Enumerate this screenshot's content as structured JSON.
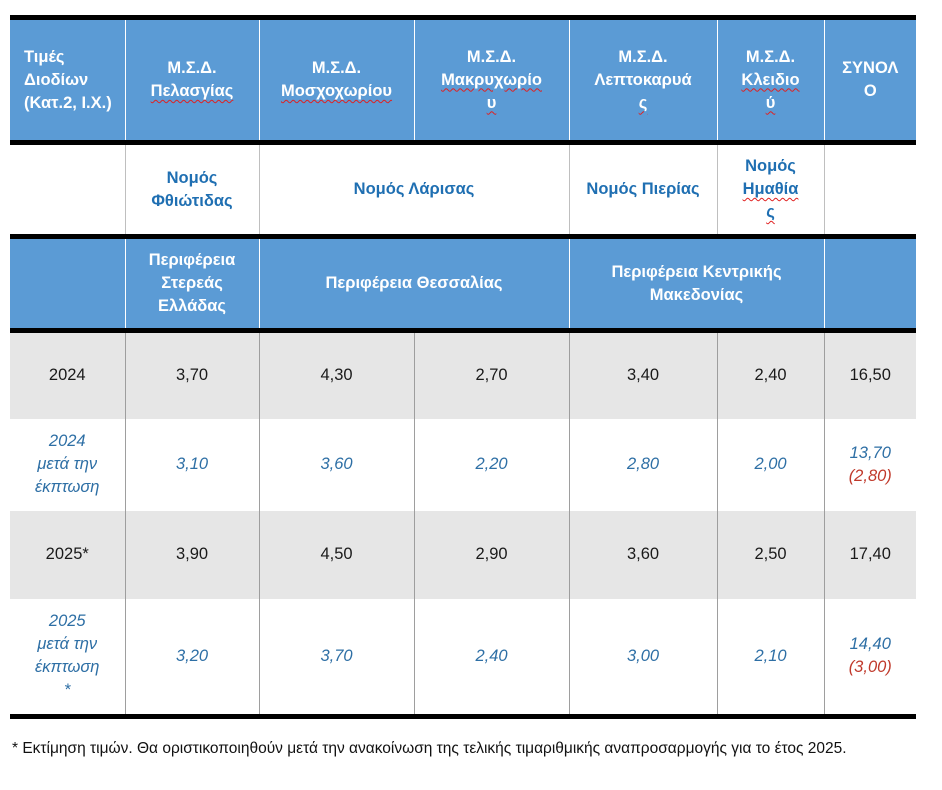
{
  "header": {
    "corner": "Τιμές Διοδίων (Κατ.2, Ι.Χ.)",
    "stations": [
      "Μ.Σ.Δ. Πελασγίας",
      "Μ.Σ.Δ. Μοσχοχωρίου",
      "Μ.Σ.Δ. Μακρυχωρίου",
      "Μ.Σ.Δ. Λεπτοκαρυάς",
      "Μ.Σ.Δ. Κλειδιού"
    ],
    "stations_line1": [
      "Μ.Σ.Δ.",
      "Μ.Σ.Δ.",
      "Μ.Σ.Δ.",
      "Μ.Σ.Δ.",
      "Μ.Σ.Δ."
    ],
    "stations_line2": [
      "Πελασγίας",
      "Μοσχοχωρίου",
      "Μακρυχωρίο",
      "Λεπτοκαρυά",
      "Κλειδιο"
    ],
    "stations_line3": [
      "",
      "",
      "υ",
      "ς",
      "ύ"
    ],
    "total": "ΣΥΝΟΛΟ",
    "total_line1": "ΣΥΝΟΛ",
    "total_line2": "Ο"
  },
  "prefectures": {
    "fthiotida": "Νομός Φθιώτιδας",
    "larisa": "Νομός Λάρισας",
    "pieria": "Νομός Πιερίας",
    "imathia_line1": "Νομός",
    "imathia_line2": "Ημαθία",
    "imathia_line3": "ς"
  },
  "regions": {
    "sterea": "Περιφέρεια Στερεάς Ελλάδας",
    "thessalia": "Περιφέρεια Θεσσαλίας",
    "kentriki_makedonia": "Περιφέρεια Κεντρικής Μακεδονίας"
  },
  "rows": [
    {
      "label": "2024",
      "values": [
        "3,70",
        "4,30",
        "2,70",
        "3,40",
        "2,40"
      ],
      "total": "16,50",
      "total_note": ""
    },
    {
      "label": "2024 μετά την έκπτωση",
      "values": [
        "3,10",
        "3,60",
        "2,20",
        "2,80",
        "2,00"
      ],
      "total": "13,70",
      "total_note": "(2,80)"
    },
    {
      "label": "2025*",
      "values": [
        "3,90",
        "4,50",
        "2,90",
        "3,60",
        "2,50"
      ],
      "total": "17,40",
      "total_note": ""
    },
    {
      "label": "2025 μετά την έκπτωση *",
      "values": [
        "3,20",
        "3,70",
        "2,40",
        "3,00",
        "2,10"
      ],
      "total": "14,40",
      "total_note": "(3,00)"
    }
  ],
  "footnote": "* Εκτίμηση τιμών. Θα οριστικοποιηθούν μετά την ανακοίνωση της τελικής τιμαριθμικής αναπροσαρμογής για το έτος 2025.",
  "colors": {
    "header_blue": "#5b9bd5",
    "text_blue": "#1f6fb2",
    "italic_blue": "#2e6fa5",
    "red": "#c0392b",
    "grey_row": "#e6e6e6"
  }
}
